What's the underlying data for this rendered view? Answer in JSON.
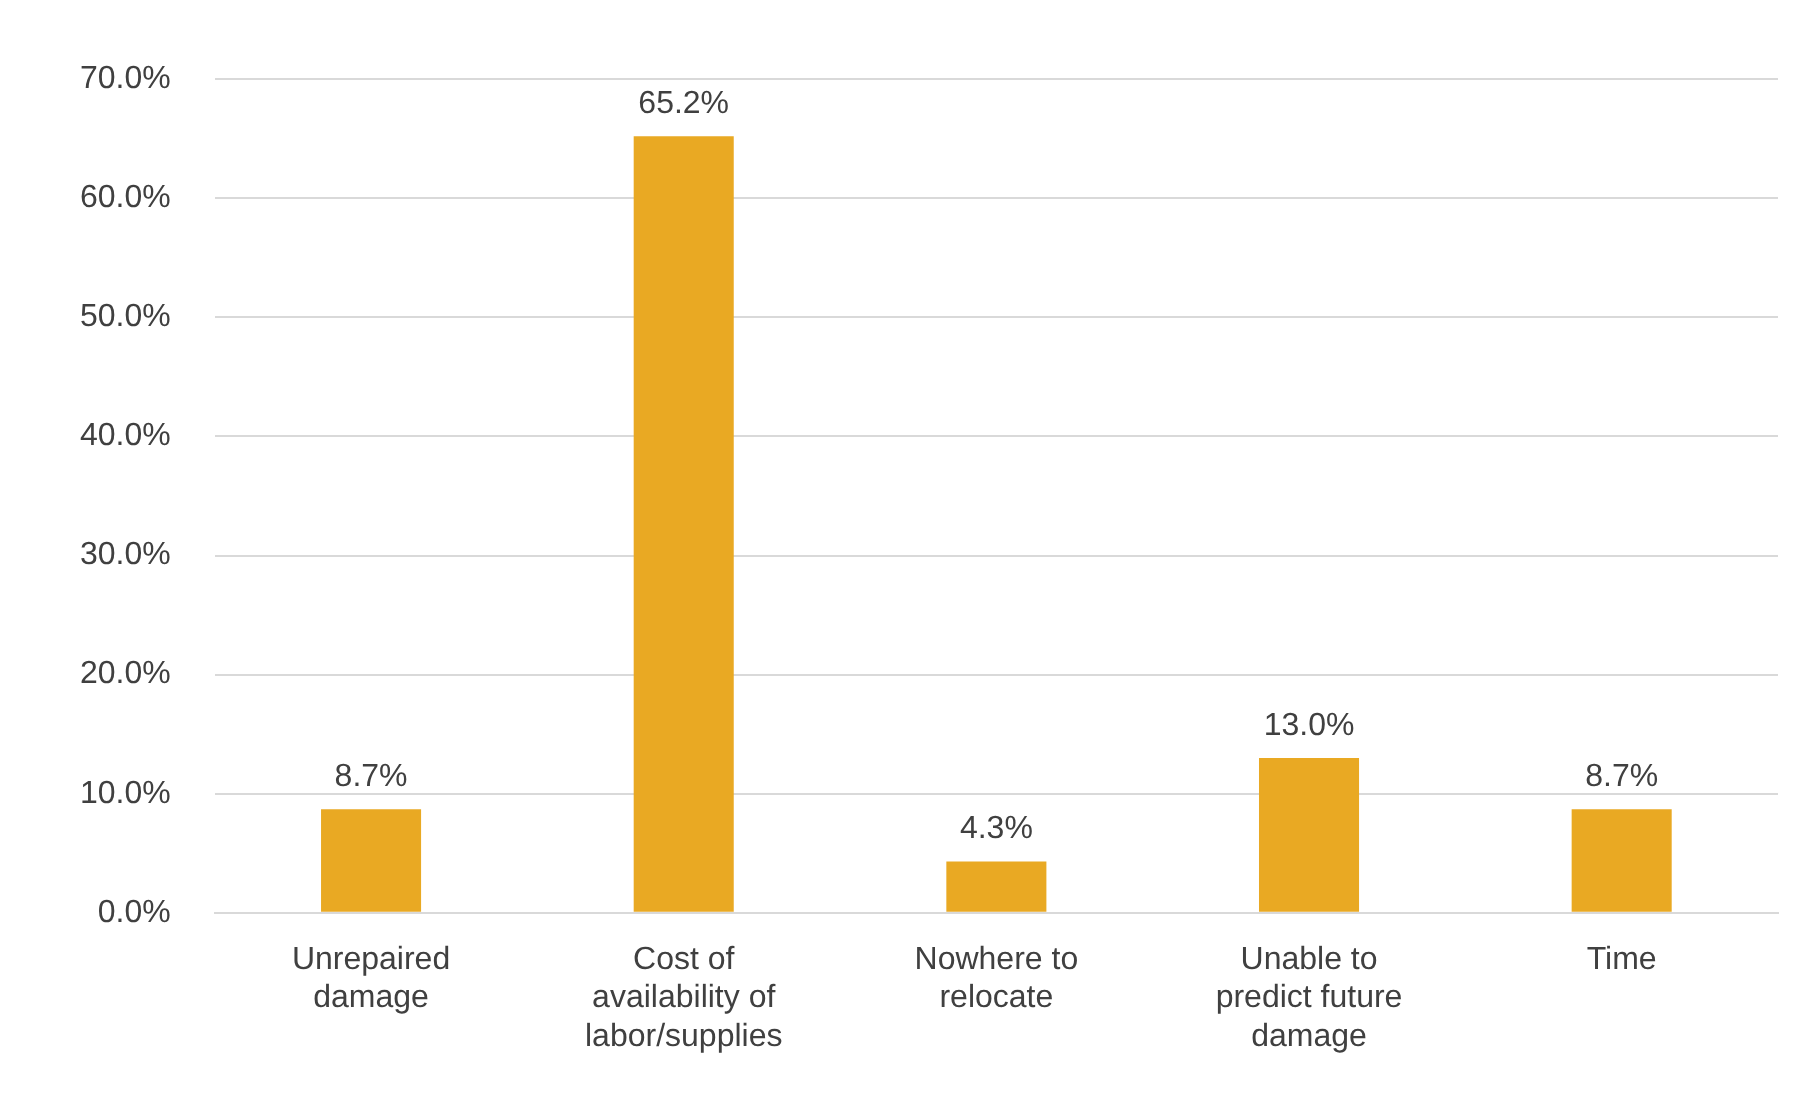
{
  "chart_data": {
    "type": "bar",
    "categories": [
      "Unrepaired damage",
      "Cost of availability of labor/supplies",
      "Nowhere to relocate",
      "Unable to predict future damage",
      "Time"
    ],
    "values": [
      8.7,
      65.2,
      4.3,
      13.0,
      8.7
    ],
    "value_labels": [
      "8.7%",
      "65.2%",
      "4.3%",
      "13.0%",
      "8.7%"
    ],
    "color": "#e9a923",
    "ylim": [
      0,
      70
    ],
    "yticks": [
      {
        "value": 0,
        "label": "0.0%"
      },
      {
        "value": 10,
        "label": "10.0%"
      },
      {
        "value": 20,
        "label": "20.0%"
      },
      {
        "value": 30,
        "label": "30.0%"
      },
      {
        "value": 40,
        "label": "40.0%"
      },
      {
        "value": 50,
        "label": "50.0%"
      },
      {
        "value": 60,
        "label": "60.0%"
      },
      {
        "value": 70,
        "label": "70.0%"
      }
    ],
    "grid": "y"
  }
}
